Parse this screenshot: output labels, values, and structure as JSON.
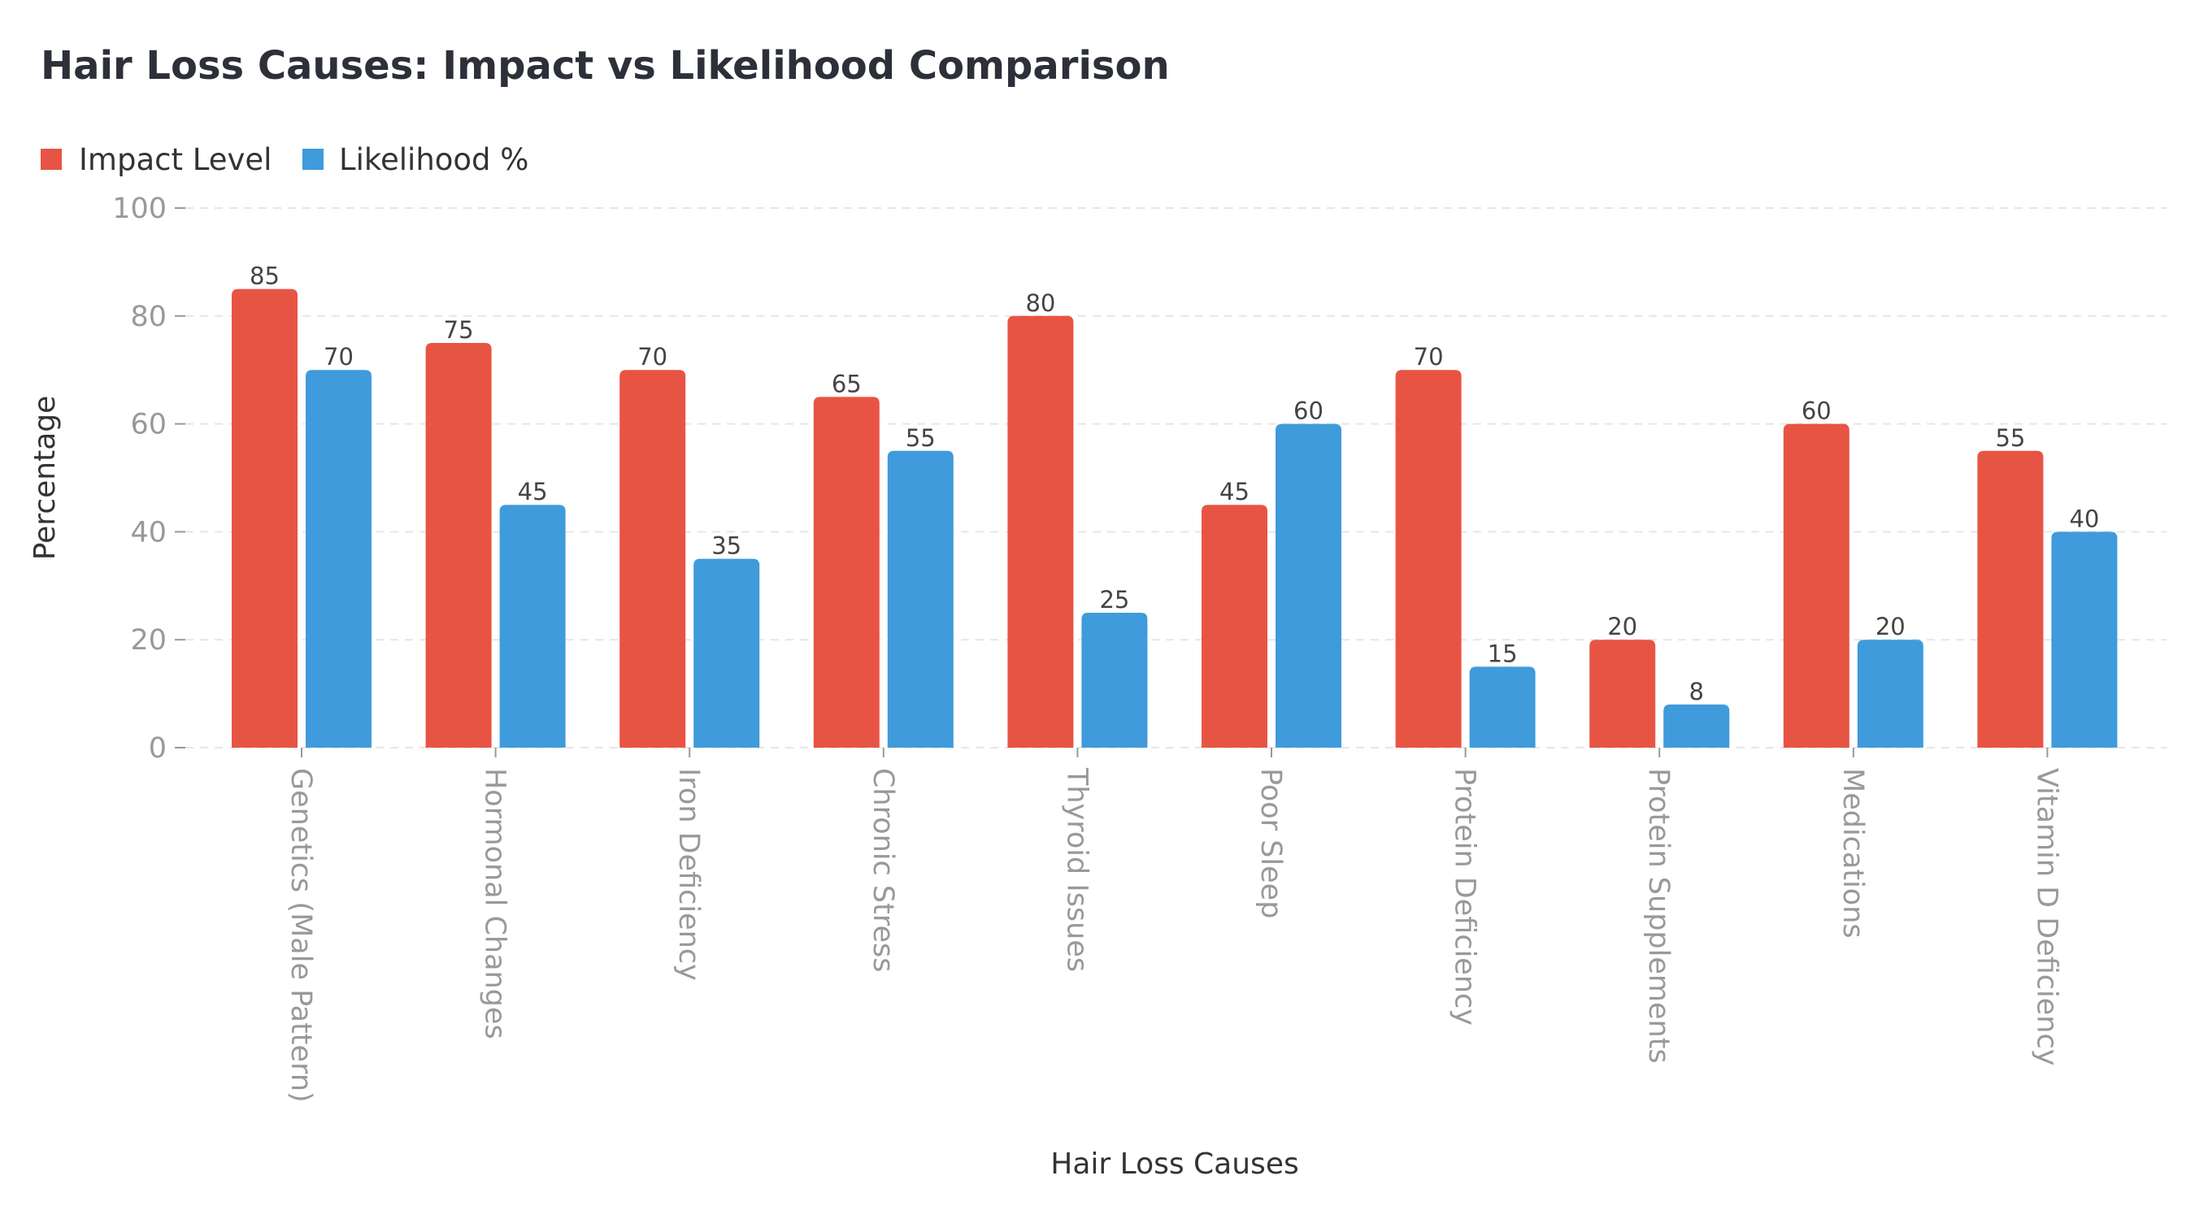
{
  "chart_data": {
    "type": "bar",
    "title": "Hair Loss Causes: Impact vs Likelihood Comparison",
    "xlabel": "Hair Loss Causes",
    "ylabel": "Percentage",
    "ylim": [
      0,
      100
    ],
    "yticks": [
      0,
      20,
      40,
      60,
      80,
      100
    ],
    "grid": true,
    "legend_position": "top-left",
    "categories": [
      "Genetics (Male Pattern)",
      "Hormonal Changes",
      "Iron Deficiency",
      "Chronic Stress",
      "Thyroid Issues",
      "Poor Sleep",
      "Protein Deficiency",
      "Protein Supplements",
      "Medications",
      "Vitamin D Deficiency"
    ],
    "series": [
      {
        "name": "Impact Level",
        "color": "#e85444",
        "values": [
          85,
          75,
          70,
          65,
          80,
          45,
          70,
          20,
          60,
          55
        ]
      },
      {
        "name": "Likelihood %",
        "color": "#3f9bdb",
        "values": [
          70,
          45,
          35,
          55,
          25,
          60,
          15,
          8,
          20,
          40
        ]
      }
    ]
  }
}
